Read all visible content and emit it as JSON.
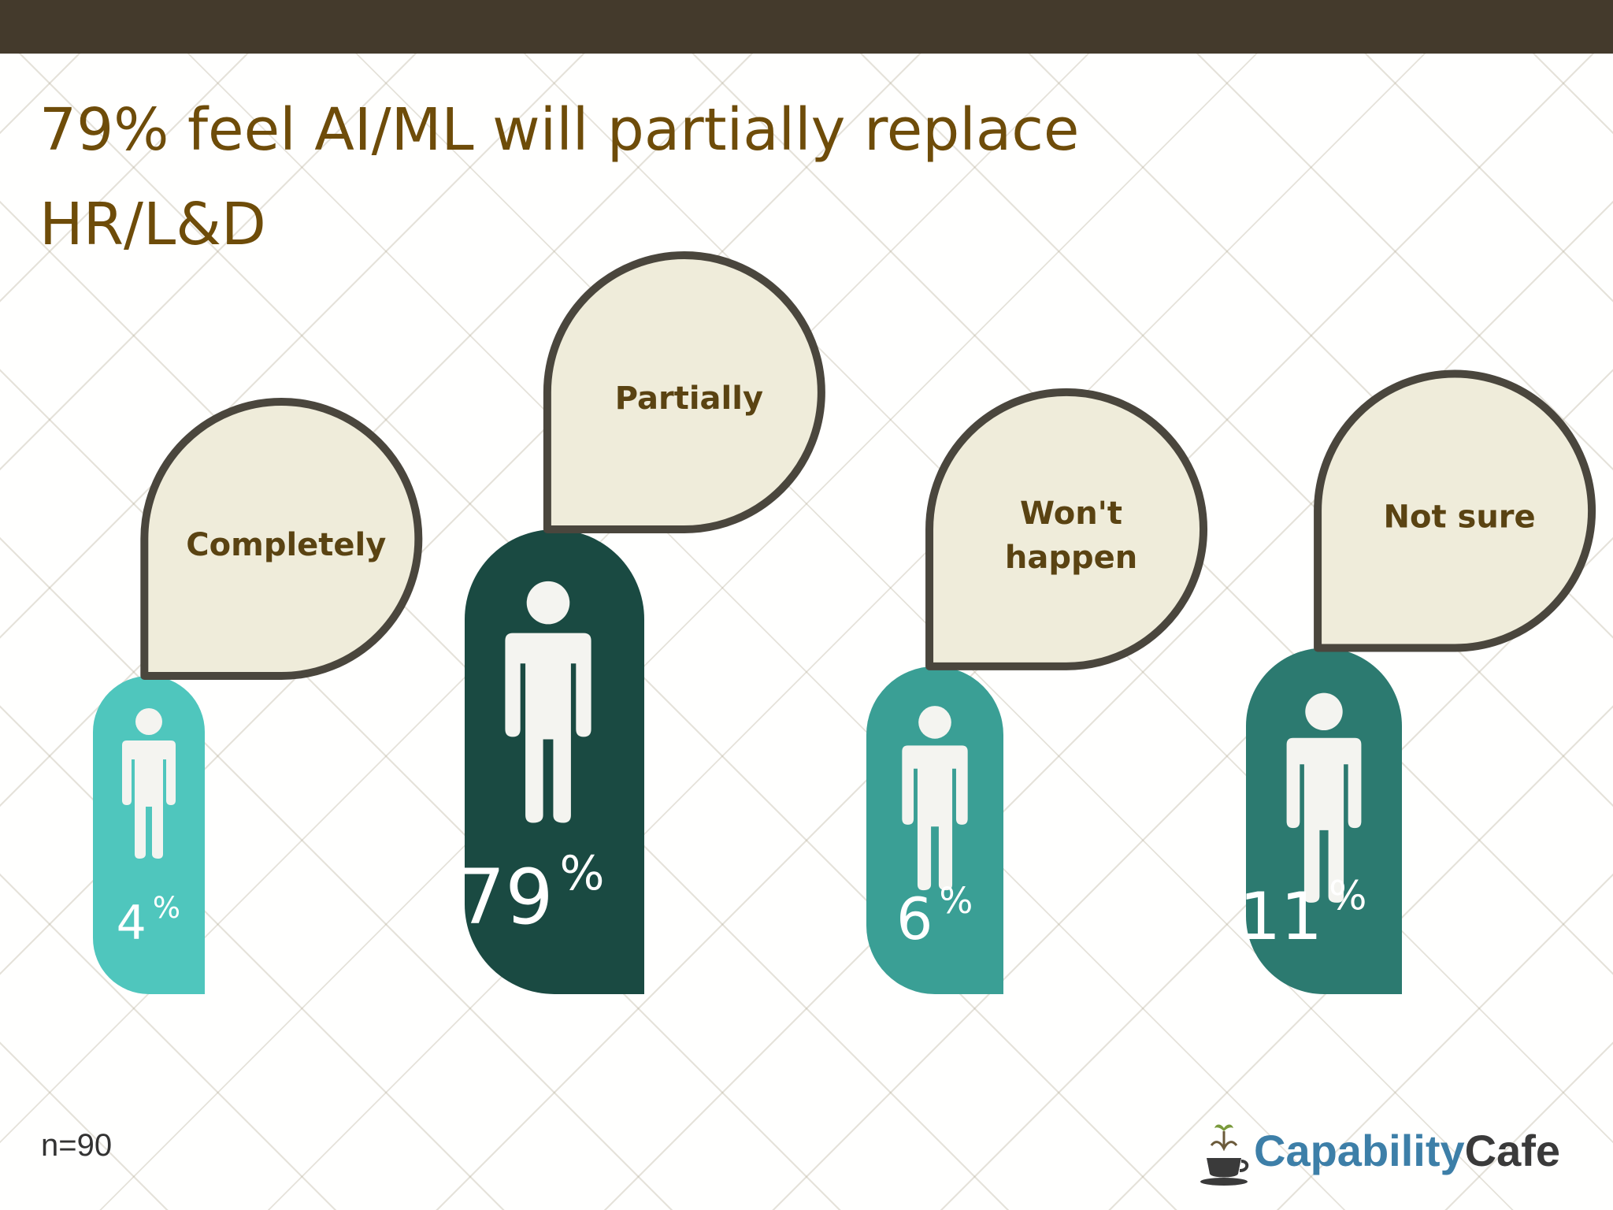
{
  "title": "79% feel AI/ML will partially replace HR/L&D",
  "sample_size": "n=90",
  "logo": {
    "part1": "Capability",
    "part2": "Cafe",
    "icon": "coffee-cup-icon"
  },
  "colors": {
    "top_bar": "#443a2c",
    "title": "#6e4c09",
    "bubble_fill": "#efecda",
    "bubble_stroke": "#4a463d",
    "bubble_text": "#5a4312"
  },
  "chart_data": {
    "type": "pictograph",
    "unit": "%",
    "categories": [
      "Completely",
      "Partially",
      "Won't happen",
      "Not sure"
    ],
    "values": [
      4,
      79,
      6,
      11
    ],
    "colors": [
      "#4fc6bd",
      "#1a4a42",
      "#3a9f95",
      "#2c7a70"
    ],
    "icon": "person-icon"
  }
}
